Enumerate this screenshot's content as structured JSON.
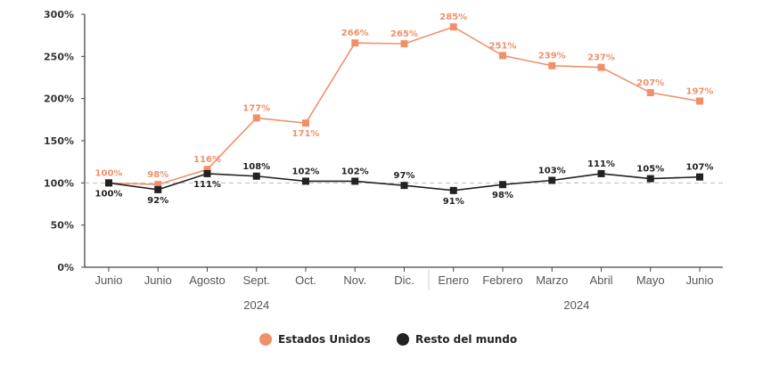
{
  "chart_data": {
    "type": "line",
    "categories": [
      "Junio",
      "Junio",
      "Agosto",
      "Sept.",
      "Oct.",
      "Nov.",
      "Dic.",
      "Enero",
      "Febrero",
      "Marzo",
      "Abril",
      "Mayo",
      "Junio"
    ],
    "year_labels": [
      "2024",
      "2024"
    ],
    "yticks": [
      "0%",
      "50%",
      "100%",
      "150%",
      "200%",
      "250%",
      "300%"
    ],
    "ylim": [
      0,
      300
    ],
    "reference_line": 100,
    "series": [
      {
        "name": "Estados Unidos",
        "color": "#f0906a",
        "values": [
          100,
          98,
          116,
          177,
          171,
          266,
          265,
          285,
          251,
          239,
          237,
          207,
          197
        ],
        "labels": [
          "100%",
          "98%",
          "116%",
          "177%",
          "171%",
          "266%",
          "265%",
          "285%",
          "251%",
          "239%",
          "237%",
          "207%",
          "197%"
        ]
      },
      {
        "name": "Resto del mundo",
        "color": "#222222",
        "values": [
          100,
          92,
          111,
          108,
          102,
          102,
          97,
          91,
          98,
          103,
          111,
          105,
          107
        ],
        "labels": [
          "100%",
          "92%",
          "111%",
          "108%",
          "102%",
          "102%",
          "97%",
          "91%",
          "98%",
          "103%",
          "111%",
          "105%",
          "107%"
        ]
      }
    ]
  }
}
